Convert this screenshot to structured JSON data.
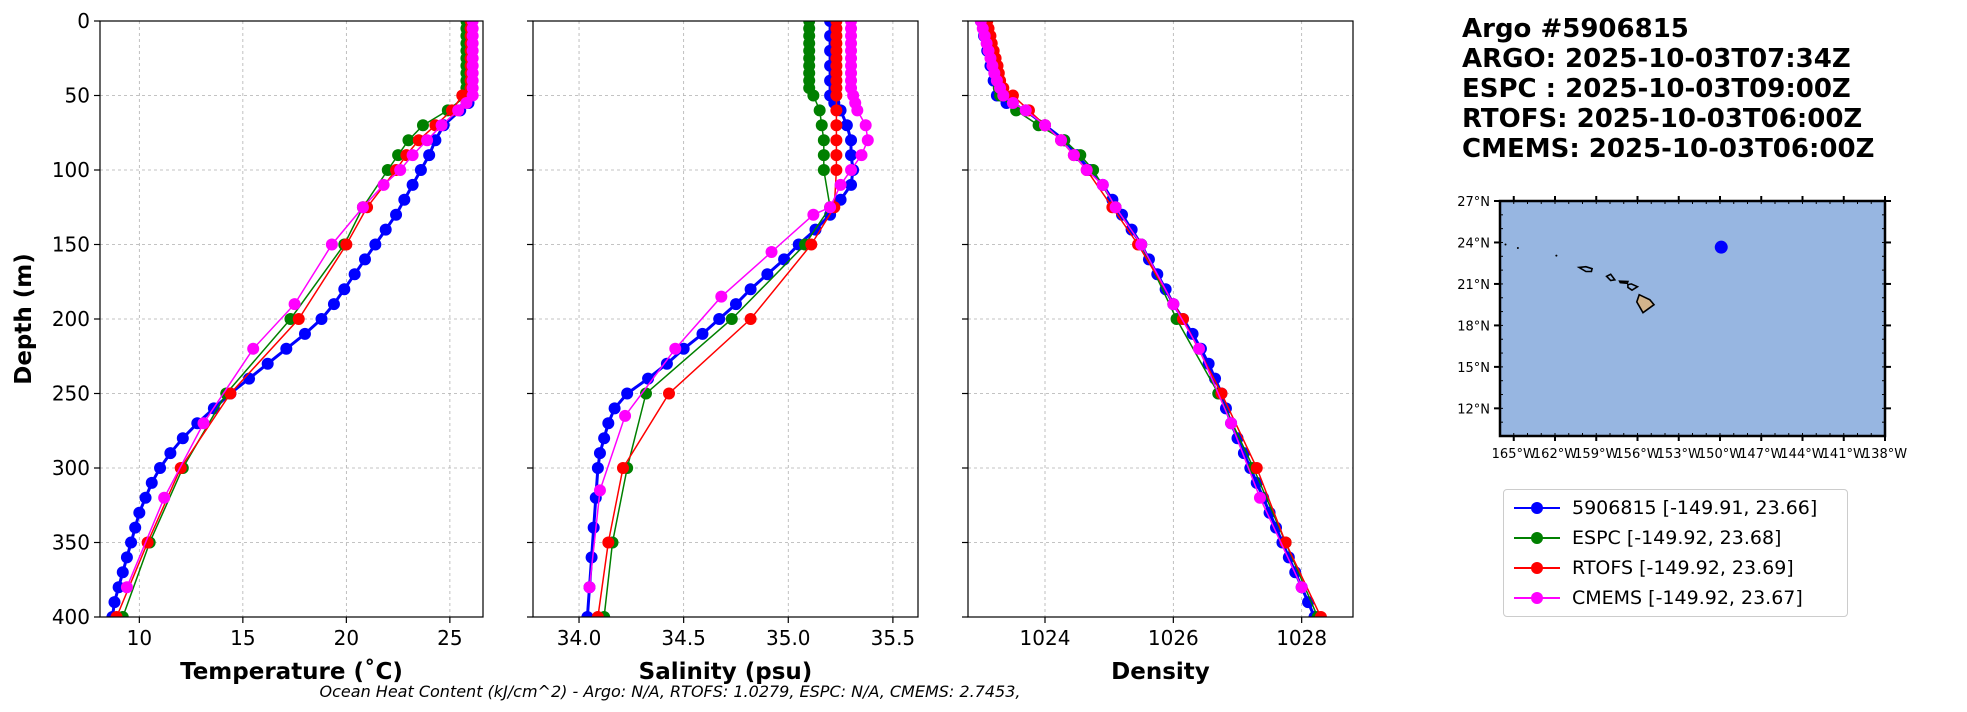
{
  "title_block": {
    "line1": "Argo #5906815",
    "line2": "ARGO: 2025-10-03T07:34Z",
    "line3": "ESPC : 2025-10-03T09:00Z",
    "line4": "RTOFS: 2025-10-03T06:00Z",
    "line5": "CMEMS: 2025-10-03T06:00Z"
  },
  "caption": "Ocean Heat Content (kJ/cm^2) - Argo: N/A,  RTOFS: 1.0279,  ESPC: N/A,  CMEMS: 2.7453,",
  "legend": [
    {
      "label": "5906815 [-149.91, 23.66]",
      "color": "#0000ff"
    },
    {
      "label": "ESPC [-149.92, 23.68]",
      "color": "#008000"
    },
    {
      "label": "RTOFS [-149.92, 23.69]",
      "color": "#ff0000"
    },
    {
      "label": "CMEMS [-149.92, 23.67]",
      "color": "#ff00ff"
    }
  ],
  "chart_data": [
    {
      "type": "line",
      "id": "temperature",
      "xlabel": "Temperature (˚C)",
      "ylabel": "Depth (m)",
      "xlim": [
        8.1,
        26.6
      ],
      "ylim": [
        400,
        0
      ],
      "xticks": [
        10,
        15,
        20,
        25
      ],
      "yticks": [
        0,
        50,
        100,
        150,
        200,
        250,
        300,
        350,
        400
      ],
      "grid": true,
      "series": [
        {
          "name": "5906815",
          "color": "#0000ff",
          "marker_size": 6,
          "line_width": 3,
          "depth": [
            0,
            10,
            20,
            30,
            40,
            50,
            55,
            60,
            70,
            80,
            90,
            100,
            110,
            120,
            130,
            140,
            150,
            160,
            170,
            180,
            190,
            200,
            210,
            220,
            230,
            240,
            250,
            260,
            270,
            280,
            290,
            300,
            310,
            320,
            330,
            340,
            350,
            360,
            370,
            380,
            390,
            400
          ],
          "values": [
            26.0,
            26.0,
            26.0,
            26.0,
            26.0,
            26.0,
            25.9,
            25.5,
            24.7,
            24.3,
            24.0,
            23.6,
            23.2,
            22.8,
            22.4,
            21.9,
            21.4,
            20.9,
            20.4,
            19.9,
            19.4,
            18.8,
            18.0,
            17.1,
            16.2,
            15.3,
            14.4,
            13.6,
            12.8,
            12.1,
            11.5,
            11.0,
            10.6,
            10.3,
            10.0,
            9.8,
            9.6,
            9.4,
            9.2,
            9.0,
            8.8,
            8.7
          ]
        },
        {
          "name": "ESPC",
          "color": "#008000",
          "marker_size": 6,
          "line_width": 1.5,
          "depth": [
            0,
            5,
            10,
            15,
            20,
            25,
            30,
            35,
            40,
            45,
            50,
            60,
            70,
            80,
            90,
            100,
            125,
            150,
            200,
            250,
            300,
            350,
            400
          ],
          "values": [
            25.8,
            25.8,
            25.8,
            25.8,
            25.8,
            25.8,
            25.8,
            25.8,
            25.8,
            25.8,
            25.8,
            24.9,
            23.7,
            23.0,
            22.5,
            22.0,
            20.8,
            19.9,
            17.3,
            14.2,
            12.1,
            10.5,
            9.2
          ]
        },
        {
          "name": "RTOFS",
          "color": "#ff0000",
          "marker_size": 6,
          "line_width": 1.5,
          "depth": [
            0,
            5,
            10,
            15,
            20,
            25,
            30,
            35,
            40,
            45,
            50,
            60,
            70,
            80,
            90,
            100,
            125,
            150,
            200,
            250,
            300,
            350,
            400
          ],
          "values": [
            26.0,
            26.0,
            26.0,
            26.0,
            26.0,
            26.0,
            26.0,
            26.0,
            26.0,
            26.0,
            25.6,
            25.1,
            24.3,
            23.5,
            22.9,
            22.4,
            21.0,
            20.0,
            17.7,
            14.4,
            12.0,
            10.4,
            8.9
          ]
        },
        {
          "name": "CMEMS",
          "color": "#ff00ff",
          "marker_size": 6,
          "line_width": 1.5,
          "depth": [
            0,
            5,
            10,
            15,
            20,
            25,
            30,
            35,
            40,
            45,
            50,
            55,
            60,
            70,
            80,
            90,
            100,
            110,
            125,
            150,
            190,
            220,
            270,
            320,
            380
          ],
          "values": [
            26.1,
            26.1,
            26.1,
            26.1,
            26.1,
            26.1,
            26.1,
            26.1,
            26.1,
            26.1,
            26.1,
            25.8,
            25.4,
            24.6,
            23.9,
            23.2,
            22.6,
            21.8,
            20.8,
            19.3,
            17.5,
            15.5,
            13.1,
            11.2,
            9.4
          ]
        }
      ]
    },
    {
      "type": "line",
      "id": "salinity",
      "xlabel": "Salinity (psu)",
      "ylim": [
        400,
        0
      ],
      "xlim": [
        33.78,
        35.62
      ],
      "xticks": [
        34.0,
        34.5,
        35.0,
        35.5
      ],
      "grid": true,
      "series": [
        {
          "name": "5906815",
          "color": "#0000ff",
          "marker_size": 6,
          "line_width": 3,
          "depth": [
            0,
            10,
            20,
            30,
            40,
            50,
            55,
            60,
            70,
            80,
            90,
            100,
            110,
            120,
            130,
            140,
            150,
            160,
            170,
            180,
            190,
            200,
            210,
            220,
            230,
            240,
            250,
            260,
            270,
            280,
            290,
            300,
            320,
            340,
            360,
            380,
            400
          ],
          "values": [
            35.2,
            35.2,
            35.2,
            35.2,
            35.2,
            35.2,
            35.22,
            35.25,
            35.28,
            35.3,
            35.3,
            35.31,
            35.3,
            35.25,
            35.2,
            35.13,
            35.05,
            34.98,
            34.9,
            34.82,
            34.75,
            34.67,
            34.59,
            34.5,
            34.42,
            34.33,
            34.23,
            34.17,
            34.14,
            34.12,
            34.1,
            34.09,
            34.08,
            34.07,
            34.06,
            34.05,
            34.04
          ]
        },
        {
          "name": "ESPC",
          "color": "#008000",
          "marker_size": 6,
          "line_width": 1.5,
          "depth": [
            0,
            5,
            10,
            15,
            20,
            25,
            30,
            35,
            40,
            45,
            50,
            60,
            70,
            80,
            90,
            100,
            125,
            150,
            200,
            250,
            300,
            350,
            400
          ],
          "values": [
            35.1,
            35.1,
            35.1,
            35.1,
            35.1,
            35.1,
            35.1,
            35.1,
            35.1,
            35.1,
            35.12,
            35.15,
            35.16,
            35.17,
            35.17,
            35.17,
            35.2,
            35.08,
            34.73,
            34.32,
            34.23,
            34.16,
            34.12
          ]
        },
        {
          "name": "RTOFS",
          "color": "#ff0000",
          "marker_size": 6,
          "line_width": 1.5,
          "depth": [
            0,
            5,
            10,
            15,
            20,
            25,
            30,
            35,
            40,
            45,
            50,
            60,
            70,
            80,
            90,
            100,
            125,
            150,
            200,
            250,
            300,
            350,
            400
          ],
          "values": [
            35.23,
            35.23,
            35.23,
            35.23,
            35.23,
            35.23,
            35.23,
            35.23,
            35.23,
            35.23,
            35.23,
            35.23,
            35.23,
            35.23,
            35.23,
            35.23,
            35.22,
            35.11,
            34.82,
            34.43,
            34.21,
            34.14,
            34.09
          ]
        },
        {
          "name": "CMEMS",
          "color": "#ff00ff",
          "marker_size": 6,
          "line_width": 1.5,
          "depth": [
            0,
            5,
            10,
            15,
            20,
            25,
            30,
            35,
            40,
            45,
            50,
            55,
            60,
            70,
            80,
            90,
            100,
            110,
            125,
            130,
            155,
            185,
            220,
            265,
            315,
            380
          ],
          "values": [
            35.3,
            35.3,
            35.3,
            35.3,
            35.3,
            35.3,
            35.3,
            35.3,
            35.3,
            35.3,
            35.31,
            35.32,
            35.33,
            35.37,
            35.38,
            35.35,
            35.3,
            35.25,
            35.2,
            35.12,
            34.92,
            34.68,
            34.46,
            34.22,
            34.1,
            34.05
          ]
        }
      ]
    },
    {
      "type": "line",
      "id": "density",
      "xlabel": "Density",
      "ylim": [
        400,
        0
      ],
      "xlim": [
        1022.8,
        1028.8
      ],
      "xticks": [
        1024,
        1026,
        1028
      ],
      "grid": true,
      "series": [
        {
          "name": "5906815",
          "color": "#0000ff",
          "marker_size": 6,
          "line_width": 3,
          "depth": [
            0,
            10,
            20,
            30,
            40,
            50,
            55,
            60,
            70,
            80,
            90,
            100,
            110,
            120,
            130,
            140,
            150,
            160,
            170,
            180,
            190,
            200,
            210,
            220,
            230,
            240,
            250,
            260,
            270,
            280,
            290,
            300,
            310,
            320,
            330,
            340,
            350,
            360,
            370,
            380,
            390,
            400
          ],
          "values": [
            1023.0,
            1023.05,
            1023.1,
            1023.15,
            1023.2,
            1023.25,
            1023.4,
            1023.7,
            1024.0,
            1024.3,
            1024.5,
            1024.7,
            1024.9,
            1025.05,
            1025.2,
            1025.35,
            1025.5,
            1025.62,
            1025.75,
            1025.88,
            1026.0,
            1026.15,
            1026.3,
            1026.43,
            1026.55,
            1026.65,
            1026.75,
            1026.82,
            1026.9,
            1027.0,
            1027.1,
            1027.2,
            1027.3,
            1027.4,
            1027.5,
            1027.6,
            1027.7,
            1027.8,
            1027.9,
            1028.0,
            1028.1,
            1028.2
          ]
        },
        {
          "name": "ESPC",
          "color": "#008000",
          "marker_size": 6,
          "line_width": 1.5,
          "depth": [
            0,
            5,
            10,
            15,
            20,
            25,
            30,
            35,
            40,
            45,
            50,
            60,
            70,
            80,
            90,
            100,
            125,
            150,
            200,
            250,
            300,
            350,
            400
          ],
          "values": [
            1023.05,
            1023.07,
            1023.1,
            1023.12,
            1023.15,
            1023.18,
            1023.2,
            1023.22,
            1023.25,
            1023.28,
            1023.3,
            1023.55,
            1023.9,
            1024.3,
            1024.55,
            1024.75,
            1025.1,
            1025.5,
            1026.05,
            1026.7,
            1027.25,
            1027.75,
            1028.25
          ]
        },
        {
          "name": "RTOFS",
          "color": "#ff0000",
          "marker_size": 6,
          "line_width": 1.5,
          "depth": [
            0,
            5,
            10,
            15,
            20,
            25,
            30,
            35,
            40,
            45,
            50,
            60,
            70,
            80,
            90,
            100,
            125,
            150,
            200,
            250,
            300,
            350,
            400
          ],
          "values": [
            1023.1,
            1023.12,
            1023.15,
            1023.17,
            1023.2,
            1023.23,
            1023.26,
            1023.28,
            1023.3,
            1023.35,
            1023.5,
            1023.75,
            1024.0,
            1024.25,
            1024.45,
            1024.65,
            1025.05,
            1025.45,
            1026.15,
            1026.75,
            1027.3,
            1027.75,
            1028.3
          ]
        },
        {
          "name": "CMEMS",
          "color": "#ff00ff",
          "marker_size": 6,
          "line_width": 1.5,
          "depth": [
            0,
            5,
            10,
            15,
            20,
            25,
            30,
            35,
            40,
            45,
            50,
            55,
            60,
            70,
            80,
            90,
            100,
            110,
            125,
            150,
            190,
            220,
            270,
            320,
            380
          ],
          "values": [
            1023.0,
            1023.03,
            1023.06,
            1023.09,
            1023.12,
            1023.15,
            1023.18,
            1023.21,
            1023.25,
            1023.3,
            1023.35,
            1023.5,
            1023.7,
            1024.0,
            1024.25,
            1024.45,
            1024.65,
            1024.9,
            1025.1,
            1025.5,
            1026.0,
            1026.4,
            1026.9,
            1027.35,
            1028.0
          ]
        }
      ]
    },
    {
      "type": "map",
      "id": "location_map",
      "lat_range": [
        10,
        27
      ],
      "lon_range": [
        -166,
        -138
      ],
      "lat_ticks": [
        27,
        24,
        21,
        18,
        15,
        12
      ],
      "lat_labels": [
        "27°N",
        "24°N",
        "21°N",
        "18°N",
        "15°N",
        "12°N"
      ],
      "lon_ticks": [
        -165,
        -162,
        -159,
        -156,
        -153,
        -150,
        -147,
        -144,
        -141,
        -138
      ],
      "lon_labels": [
        "165°W",
        "162°W",
        "159°W",
        "156°W",
        "153°W",
        "150°W",
        "147°W",
        "144°W",
        "141°W",
        "138°W"
      ],
      "ocean_color": "#97b6e1",
      "land_color": "#d2b48c",
      "float_location": {
        "lon": -149.91,
        "lat": 23.66,
        "color": "#0000ff"
      }
    }
  ]
}
